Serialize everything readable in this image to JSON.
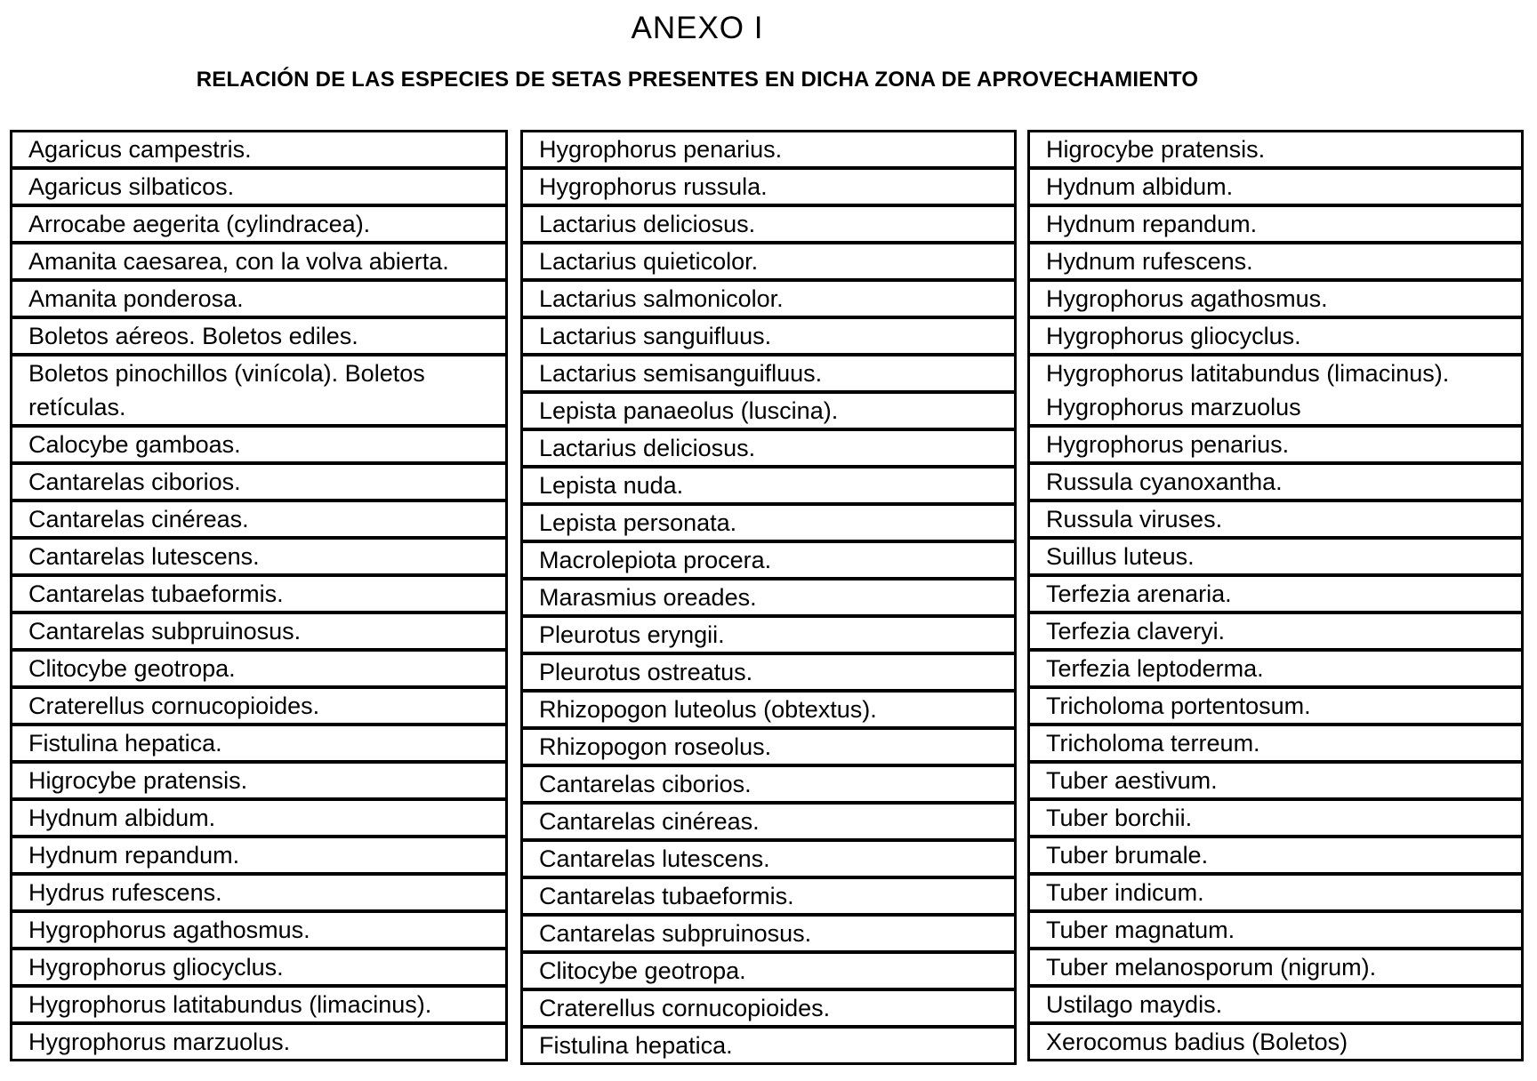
{
  "page": {
    "title": "ANEXO I",
    "subtitle": "RELACIÓN DE LAS ESPECIES DE SETAS PRESENTES EN DICHA ZONA DE APROVECHAMIENTO"
  },
  "colors": {
    "background": "#ffffff",
    "text": "#000000",
    "border": "#000000"
  },
  "table": {
    "columns": [
      {
        "cells": [
          "Agaricus campestris.",
          "Agaricus silbaticos.",
          "Arrocabe aegerita (cylindracea).",
          "Amanita caesarea, con la volva abierta.",
          "Amanita ponderosa.",
          "Boletos aéreos. Boletos ediles.",
          "Boletos pinochillos (vinícola). Boletos\nretículas.",
          "Calocybe gamboas.",
          "Cantarelas ciborios.",
          "Cantarelas cinéreas.",
          "Cantarelas lutescens.",
          "Cantarelas tubaeformis.",
          "Cantarelas subpruinosus.",
          "Clitocybe geotropa.",
          "Craterellus cornucopioides.",
          "Fistulina hepatica.",
          "Higrocybe pratensis.",
          "Hydnum albidum.",
          "Hydnum repandum.",
          "Hydrus rufescens.",
          "Hygrophorus agathosmus.",
          "Hygrophorus gliocyclus.",
          "Hygrophorus latitabundus (limacinus).",
          "Hygrophorus marzuolus."
        ]
      },
      {
        "cells": [
          "Hygrophorus penarius.",
          "Hygrophorus russula.",
          "Lactarius deliciosus.",
          "Lactarius quieticolor.",
          "Lactarius salmonicolor.",
          "Lactarius sanguifluus.",
          "Lactarius semisanguifluus.",
          "Lepista panaeolus (luscina).",
          "Lactarius deliciosus.",
          "Lepista nuda.",
          "Lepista personata.",
          "Macrolepiota procera.",
          "Marasmius oreades.",
          "Pleurotus eryngii.",
          "Pleurotus ostreatus.",
          "Rhizopogon luteolus (obtextus).",
          "Rhizopogon roseolus.",
          "Cantarelas ciborios.",
          "Cantarelas cinéreas.",
          "Cantarelas lutescens.",
          "Cantarelas tubaeformis.",
          "Cantarelas subpruinosus.",
          "Clitocybe geotropa.",
          "Craterellus cornucopioides.",
          "Fistulina hepatica."
        ]
      },
      {
        "cells": [
          "Higrocybe pratensis.",
          "Hydnum albidum.",
          "Hydnum repandum.",
          "Hydnum rufescens.",
          "Hygrophorus agathosmus.",
          "Hygrophorus gliocyclus.",
          "Hygrophorus latitabundus (limacinus).\nHygrophorus marzuolus",
          "Hygrophorus penarius.",
          "Russula cyanoxantha.",
          "Russula viruses.",
          "Suillus luteus.",
          "Terfezia arenaria.",
          "Terfezia claveryi.",
          "Terfezia leptoderma.",
          "Tricholoma portentosum.",
          "Tricholoma terreum.",
          "Tuber aestivum.",
          "Tuber borchii.",
          "Tuber brumale.",
          "Tuber indicum.",
          "Tuber magnatum.",
          "Tuber melanosporum (nigrum).",
          "Ustilago maydis.",
          "Xerocomus badius (Boletos)"
        ]
      }
    ]
  }
}
